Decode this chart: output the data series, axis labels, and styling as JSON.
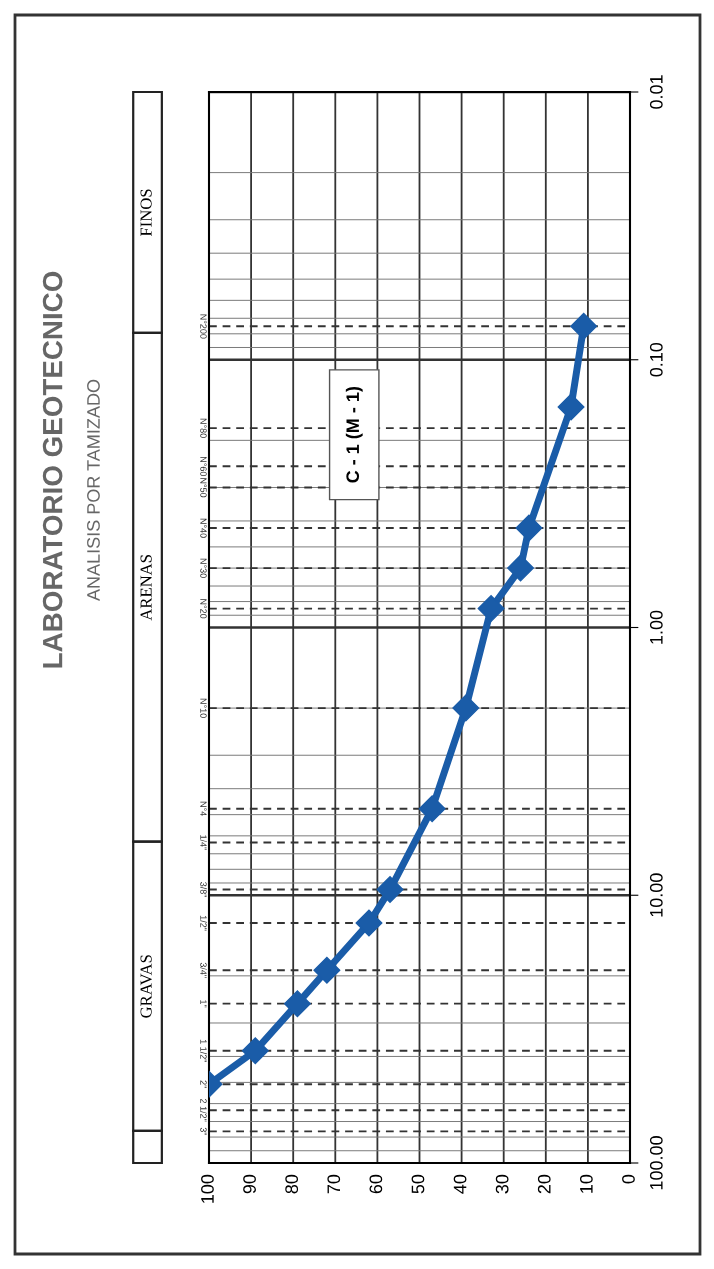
{
  "chart_data": {
    "type": "line",
    "title": "LABORATORIO GEOTECNICO",
    "subtitle": "ANALISIS POR TAMIZADO",
    "annotations": [
      "C - 1 (M - 1)",
      "GRAVAS",
      "ARENAS",
      "FINOS",
      "3\"",
      "2 1/2\"",
      "2\"",
      "1 1/2\"",
      "1\"",
      "3/4\"",
      "1/2\"",
      "3/8\"",
      "1/4\"",
      "N°4",
      "N°10",
      "N°20",
      "N°30",
      "N°40",
      "N°50",
      "N°60",
      "N°80",
      "N°200"
    ],
    "x": [
      100,
      89,
      79,
      72,
      62,
      57,
      47,
      39,
      33,
      26,
      24,
      14,
      11
    ],
    "series": [
      {
        "color": "#1a5ca8",
        "values": [
          50.8,
          38.1,
          25.4,
          19.05,
          12.7,
          9.525,
          4.75,
          2.0,
          0.85,
          0.6,
          0.425,
          0.15,
          0.075
        ]
      }
    ],
    "xlim": [
      100,
      0
    ],
    "xticks": [
      100,
      90,
      80,
      70,
      60,
      50,
      40,
      30,
      20,
      10,
      0
    ],
    "ylim": [
      100,
      0.01
    ],
    "log": "y",
    "yticks": [
      {
        "value": 100,
        "label": "100.00"
      },
      {
        "value": 10,
        "label": "10.00"
      },
      {
        "value": 1,
        "label": "1.00"
      },
      {
        "value": 0.1,
        "label": "0.10"
      },
      {
        "value": 0.01,
        "label": "0.01"
      }
    ],
    "grid": true,
    "marker": "diamond",
    "line_style": "solid",
    "ref_lines": [
      {
        "axis": "y",
        "value": 76.2
      },
      {
        "axis": "y",
        "value": 63.5
      },
      {
        "axis": "y",
        "value": 50.8
      },
      {
        "axis": "y",
        "value": 38.1
      },
      {
        "axis": "y",
        "value": 25.4
      },
      {
        "axis": "y",
        "value": 19.05
      },
      {
        "axis": "y",
        "value": 12.7
      },
      {
        "axis": "y",
        "value": 9.525
      },
      {
        "axis": "y",
        "value": 6.35
      },
      {
        "axis": "y",
        "value": 4.75
      },
      {
        "axis": "y",
        "value": 2.0
      },
      {
        "axis": "y",
        "value": 0.85
      },
      {
        "axis": "y",
        "value": 0.6
      },
      {
        "axis": "y",
        "value": 0.425
      },
      {
        "axis": "y",
        "value": 0.3
      },
      {
        "axis": "y",
        "value": 0.25
      },
      {
        "axis": "y",
        "value": 0.18
      },
      {
        "axis": "y",
        "value": 0.075
      }
    ]
  }
}
